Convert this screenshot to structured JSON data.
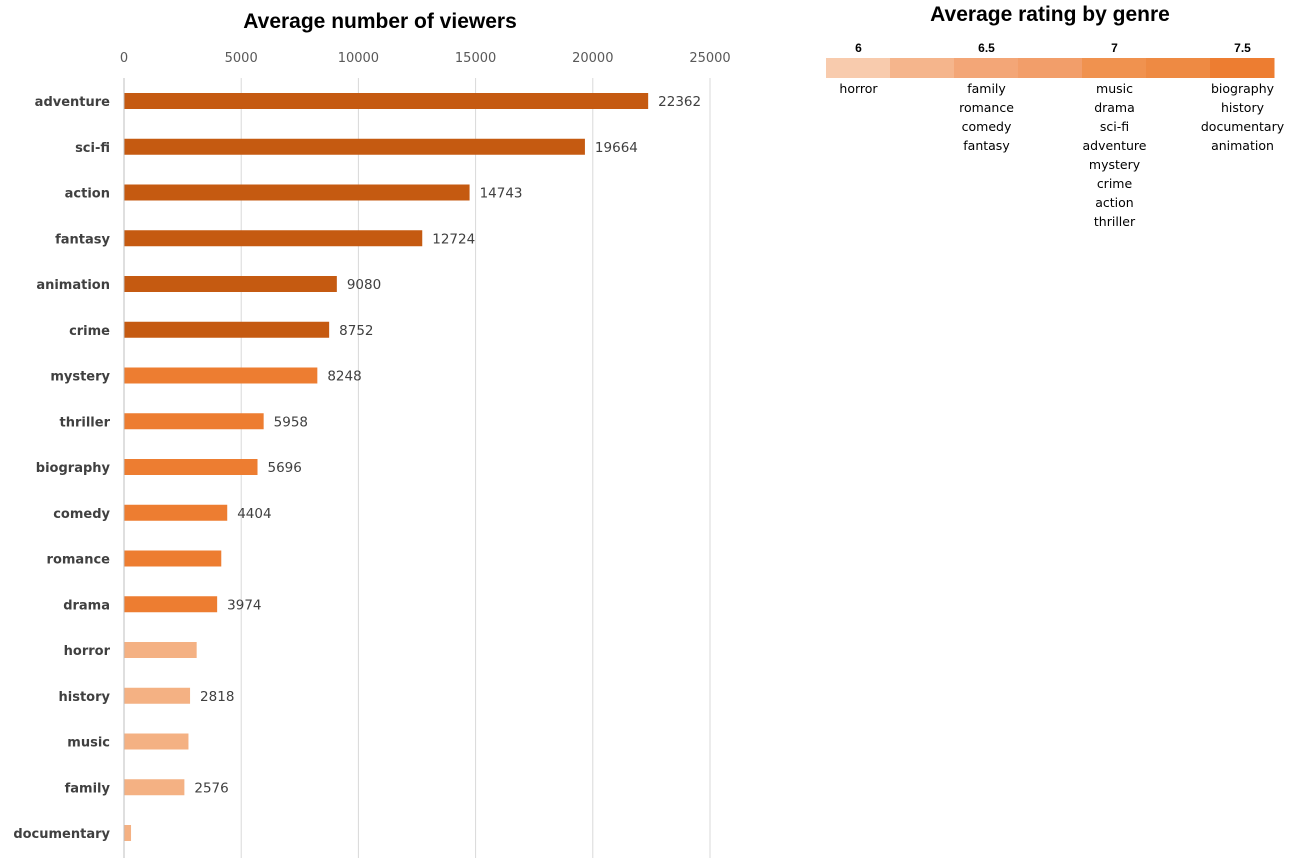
{
  "chart_data": [
    {
      "type": "bar",
      "orientation": "horizontal",
      "title": "Average number of viewers",
      "xlabel": "",
      "ylabel": "",
      "xlim": [
        0,
        25000
      ],
      "x_ticks": [
        "0",
        "5000",
        "10000",
        "15000",
        "20000",
        "25000"
      ],
      "grid": true,
      "categories": [
        "adventure",
        "sci-fi",
        "action",
        "fantasy",
        "animation",
        "crime",
        "mystery",
        "thriller",
        "biography",
        "comedy",
        "romance",
        "drama",
        "horror",
        "history",
        "music",
        "family",
        "documentary"
      ],
      "values": [
        22362,
        19664,
        14743,
        12724,
        9080,
        8752,
        8248,
        5958,
        5696,
        4404,
        4150,
        3974,
        3100,
        2818,
        2750,
        2576,
        300
      ],
      "data_labels": [
        "22362",
        "19664",
        "14743",
        "12724",
        "9080",
        "8752",
        "8248",
        "5958",
        "5696",
        "4404",
        "",
        "3974",
        "",
        "2818",
        "",
        "2576",
        ""
      ],
      "bar_colors": [
        "#c55a11",
        "#c55a11",
        "#c55a11",
        "#c55a11",
        "#c55a11",
        "#c55a11",
        "#ed7d31",
        "#ed7d31",
        "#ed7d31",
        "#ed7d31",
        "#ed7d31",
        "#ed7d31",
        "#f4b183",
        "#f4b183",
        "#f4b183",
        "#f4b183",
        "#f4b183"
      ]
    },
    {
      "type": "table",
      "title": "Average rating by genre",
      "scale_ticks": [
        "6",
        "6.5",
        "7",
        "7.5"
      ],
      "scale_colors": [
        "#f8cbad",
        "#f5b58c",
        "#f3a677",
        "#f29e6a",
        "#f0924f",
        "#ee8a43",
        "#ed7d31"
      ],
      "columns": [
        {
          "rating": "6",
          "genres": [
            "horror"
          ]
        },
        {
          "rating": "6.5",
          "genres": [
            "family",
            "romance",
            "comedy",
            "fantasy"
          ]
        },
        {
          "rating": "7",
          "genres": [
            "music",
            "drama",
            "sci-fi",
            "adventure",
            "mystery",
            "crime",
            "action",
            "thriller"
          ]
        },
        {
          "rating": "7.5",
          "genres": [
            "biography",
            "history",
            "documentary",
            "animation"
          ]
        }
      ]
    }
  ]
}
